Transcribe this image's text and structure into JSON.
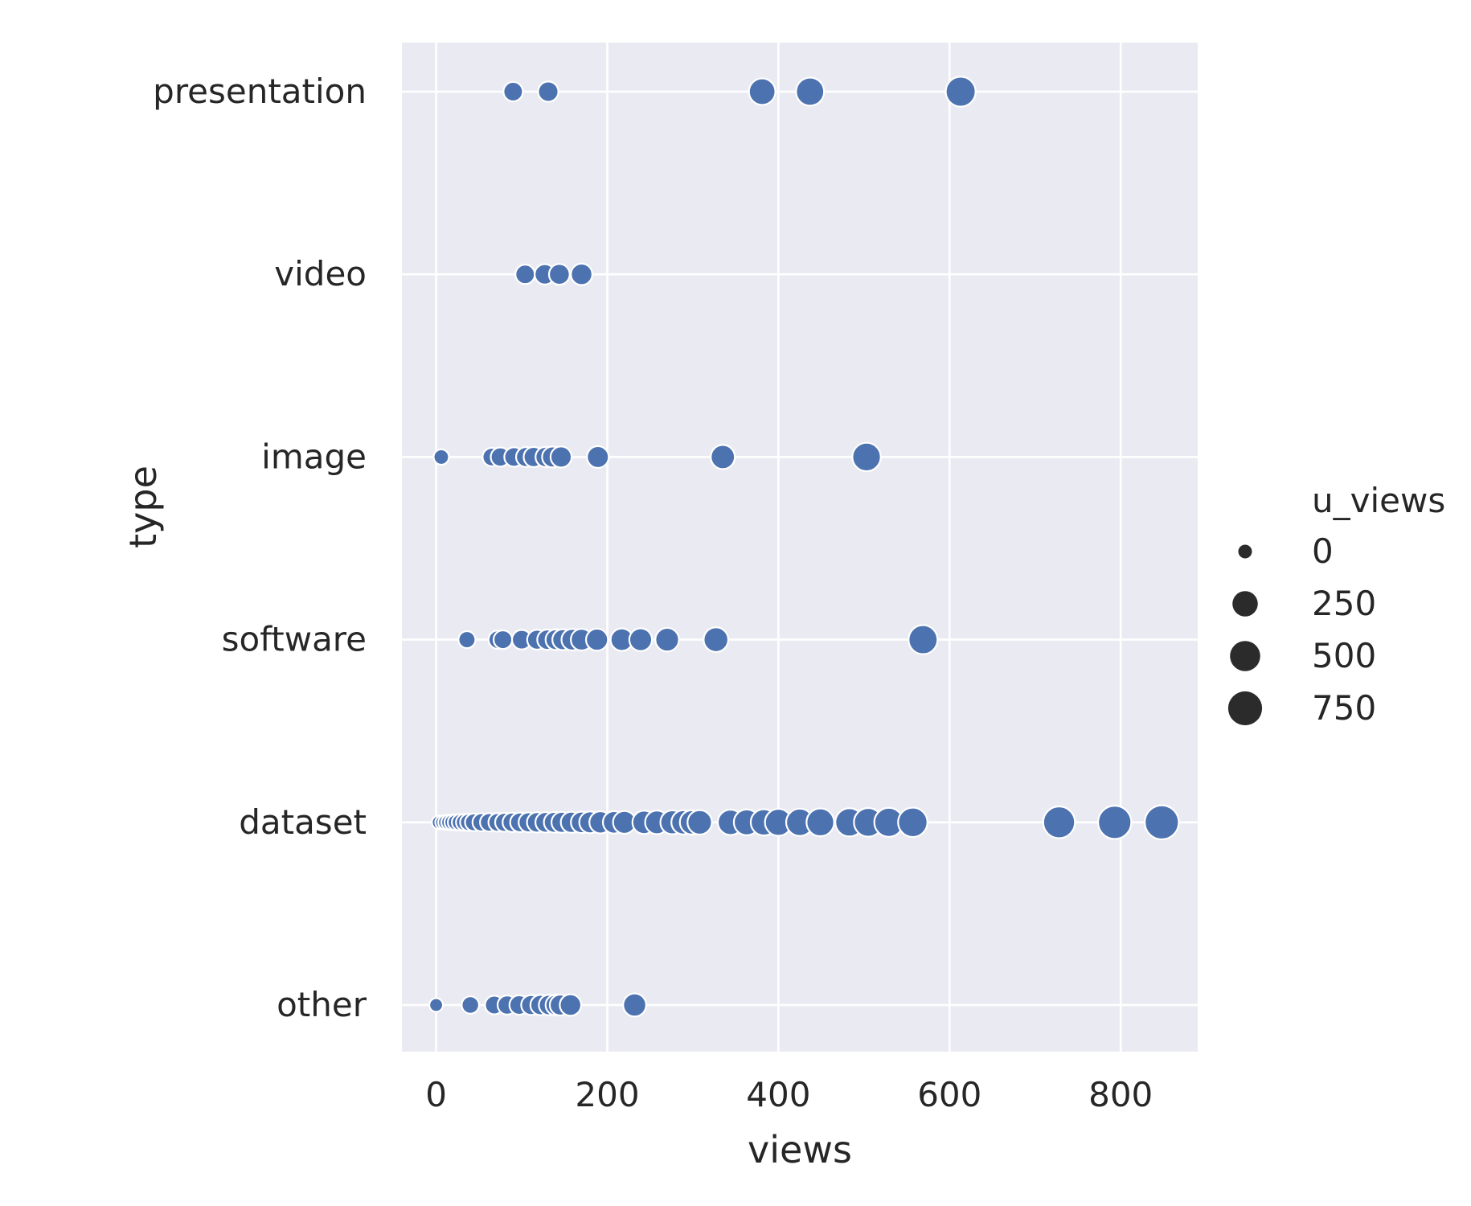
{
  "chart_data": {
    "type": "scatter",
    "title": "",
    "xlabel": "views",
    "ylabel": "type",
    "xlim": [
      -40,
      890
    ],
    "x_ticks": [
      0,
      200,
      400,
      600,
      800
    ],
    "categories": [
      "presentation",
      "video",
      "image",
      "software",
      "dataset",
      "other"
    ],
    "grid": true,
    "legend": {
      "title": "u_views",
      "placement": "right",
      "entries": [
        {
          "label": "0",
          "value": 0
        },
        {
          "label": "250",
          "value": 250
        },
        {
          "label": "500",
          "value": 500
        },
        {
          "label": "750",
          "value": 750
        }
      ]
    },
    "colors": {
      "background": "#eaeaf2",
      "grid": "#ffffff",
      "marker": "#4c72b0",
      "legend_marker": "#2b2b2b",
      "text": "#262626"
    },
    "series": [
      {
        "category": "presentation",
        "points": [
          {
            "x": 90,
            "u": 60
          },
          {
            "x": 131,
            "u": 80
          },
          {
            "x": 381,
            "u": 300
          },
          {
            "x": 437,
            "u": 380
          },
          {
            "x": 613,
            "u": 480
          }
        ]
      },
      {
        "category": "video",
        "points": [
          {
            "x": 104,
            "u": 60
          },
          {
            "x": 127,
            "u": 80
          },
          {
            "x": 144,
            "u": 90
          },
          {
            "x": 170,
            "u": 110
          }
        ]
      },
      {
        "category": "image",
        "points": [
          {
            "x": 6,
            "u": 5
          },
          {
            "x": 65,
            "u": 40
          },
          {
            "x": 75,
            "u": 55
          },
          {
            "x": 91,
            "u": 60
          },
          {
            "x": 105,
            "u": 70
          },
          {
            "x": 114,
            "u": 75
          },
          {
            "x": 128,
            "u": 80
          },
          {
            "x": 136,
            "u": 95
          },
          {
            "x": 146,
            "u": 100
          },
          {
            "x": 189,
            "u": 120
          },
          {
            "x": 335,
            "u": 200
          },
          {
            "x": 503,
            "u": 400
          }
        ]
      },
      {
        "category": "software",
        "points": [
          {
            "x": 36,
            "u": 20
          },
          {
            "x": 72,
            "u": 40
          },
          {
            "x": 78,
            "u": 45
          },
          {
            "x": 100,
            "u": 60
          },
          {
            "x": 118,
            "u": 70
          },
          {
            "x": 130,
            "u": 80
          },
          {
            "x": 140,
            "u": 90
          },
          {
            "x": 148,
            "u": 95
          },
          {
            "x": 159,
            "u": 110
          },
          {
            "x": 170,
            "u": 115
          },
          {
            "x": 188,
            "u": 125
          },
          {
            "x": 217,
            "u": 140
          },
          {
            "x": 239,
            "u": 150
          },
          {
            "x": 270,
            "u": 180
          },
          {
            "x": 327,
            "u": 220
          },
          {
            "x": 569,
            "u": 430
          }
        ]
      },
      {
        "category": "dataset",
        "points": [
          {
            "x": 3,
            "u": 0
          },
          {
            "x": 7,
            "u": 0
          },
          {
            "x": 11,
            "u": 2
          },
          {
            "x": 15,
            "u": 5
          },
          {
            "x": 19,
            "u": 8
          },
          {
            "x": 23,
            "u": 10
          },
          {
            "x": 28,
            "u": 15
          },
          {
            "x": 33,
            "u": 18
          },
          {
            "x": 38,
            "u": 22
          },
          {
            "x": 44,
            "u": 28
          },
          {
            "x": 53,
            "u": 35
          },
          {
            "x": 62,
            "u": 40
          },
          {
            "x": 72,
            "u": 45
          },
          {
            "x": 80,
            "u": 50
          },
          {
            "x": 89,
            "u": 60
          },
          {
            "x": 98,
            "u": 65
          },
          {
            "x": 108,
            "u": 70
          },
          {
            "x": 118,
            "u": 80
          },
          {
            "x": 128,
            "u": 85
          },
          {
            "x": 138,
            "u": 90
          },
          {
            "x": 147,
            "u": 95
          },
          {
            "x": 158,
            "u": 100
          },
          {
            "x": 170,
            "u": 110
          },
          {
            "x": 180,
            "u": 120
          },
          {
            "x": 192,
            "u": 130
          },
          {
            "x": 208,
            "u": 140
          },
          {
            "x": 220,
            "u": 150
          },
          {
            "x": 243,
            "u": 170
          },
          {
            "x": 258,
            "u": 180
          },
          {
            "x": 276,
            "u": 190
          },
          {
            "x": 289,
            "u": 200
          },
          {
            "x": 299,
            "u": 205
          },
          {
            "x": 308,
            "u": 210
          },
          {
            "x": 344,
            "u": 250
          },
          {
            "x": 363,
            "u": 270
          },
          {
            "x": 383,
            "u": 290
          },
          {
            "x": 400,
            "u": 320
          },
          {
            "x": 425,
            "u": 340
          },
          {
            "x": 449,
            "u": 360
          },
          {
            "x": 483,
            "u": 390
          },
          {
            "x": 505,
            "u": 410
          },
          {
            "x": 529,
            "u": 430
          },
          {
            "x": 557,
            "u": 450
          },
          {
            "x": 728,
            "u": 600
          },
          {
            "x": 793,
            "u": 700
          },
          {
            "x": 848,
            "u": 760
          }
        ]
      },
      {
        "category": "other",
        "points": [
          {
            "x": 0,
            "u": 0
          },
          {
            "x": 40,
            "u": 25
          },
          {
            "x": 68,
            "u": 45
          },
          {
            "x": 83,
            "u": 55
          },
          {
            "x": 97,
            "u": 60
          },
          {
            "x": 111,
            "u": 70
          },
          {
            "x": 122,
            "u": 80
          },
          {
            "x": 132,
            "u": 85
          },
          {
            "x": 140,
            "u": 90
          },
          {
            "x": 145,
            "u": 95
          },
          {
            "x": 157,
            "u": 110
          },
          {
            "x": 232,
            "u": 160
          }
        ]
      }
    ]
  }
}
